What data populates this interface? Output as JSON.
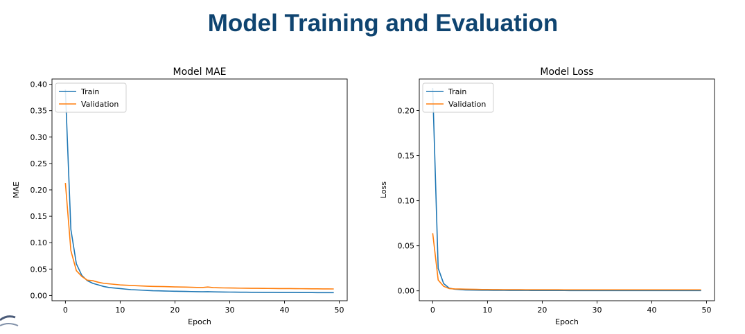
{
  "page": {
    "title": "Model Training and Evaluation"
  },
  "colors": {
    "title": "#0f4470",
    "train": "#1f77b4",
    "validation": "#ff7f0e"
  },
  "chart_data": [
    {
      "type": "line",
      "title": "Model MAE",
      "xlabel": "Epoch",
      "ylabel": "MAE",
      "xlim": [
        -2.45,
        51.45
      ],
      "ylim": [
        -0.01,
        0.41
      ],
      "xticks": [
        0,
        10,
        20,
        30,
        40,
        50
      ],
      "yticks": [
        0.0,
        0.05,
        0.1,
        0.15,
        0.2,
        0.25,
        0.3,
        0.35,
        0.4
      ],
      "ytick_labels": [
        "0.00",
        "0.05",
        "0.10",
        "0.15",
        "0.20",
        "0.25",
        "0.30",
        "0.35",
        "0.40"
      ],
      "legend_position": "top-left",
      "grid": false,
      "x": [
        0,
        1,
        2,
        3,
        4,
        5,
        6,
        7,
        8,
        9,
        10,
        11,
        12,
        13,
        14,
        15,
        16,
        17,
        18,
        19,
        20,
        21,
        22,
        23,
        24,
        25,
        26,
        27,
        28,
        29,
        30,
        31,
        32,
        33,
        34,
        35,
        36,
        37,
        38,
        39,
        40,
        41,
        42,
        43,
        44,
        45,
        46,
        47,
        48,
        49
      ],
      "series": [
        {
          "name": "Train",
          "color": "#1f77b4",
          "values": [
            0.39,
            0.125,
            0.06,
            0.038,
            0.028,
            0.023,
            0.02,
            0.017,
            0.015,
            0.014,
            0.013,
            0.012,
            0.011,
            0.0105,
            0.01,
            0.0095,
            0.009,
            0.0088,
            0.0085,
            0.0082,
            0.008,
            0.0078,
            0.0076,
            0.0074,
            0.0072,
            0.007,
            0.0072,
            0.0068,
            0.0066,
            0.0065,
            0.0064,
            0.0063,
            0.0062,
            0.0061,
            0.006,
            0.006,
            0.0059,
            0.0058,
            0.0058,
            0.0057,
            0.0057,
            0.0056,
            0.0056,
            0.0055,
            0.0055,
            0.0055,
            0.0054,
            0.0054,
            0.0054,
            0.0053
          ]
        },
        {
          "name": "Validation",
          "color": "#ff7f0e",
          "values": [
            0.213,
            0.085,
            0.047,
            0.036,
            0.029,
            0.028,
            0.025,
            0.023,
            0.022,
            0.021,
            0.02,
            0.0195,
            0.019,
            0.0185,
            0.018,
            0.0175,
            0.0172,
            0.017,
            0.0168,
            0.0165,
            0.0162,
            0.016,
            0.0158,
            0.0155,
            0.0152,
            0.015,
            0.016,
            0.0148,
            0.0145,
            0.0143,
            0.0142,
            0.014,
            0.0138,
            0.0137,
            0.0136,
            0.0135,
            0.0134,
            0.0133,
            0.0132,
            0.0131,
            0.013,
            0.013,
            0.0129,
            0.0128,
            0.0127,
            0.0126,
            0.0125,
            0.0124,
            0.0124,
            0.0123
          ]
        }
      ]
    },
    {
      "type": "line",
      "title": "Model Loss",
      "xlabel": "Epoch",
      "ylabel": "Loss",
      "xlim": [
        -2.45,
        51.45
      ],
      "ylim": [
        -0.011,
        0.235
      ],
      "xticks": [
        0,
        10,
        20,
        30,
        40,
        50
      ],
      "yticks": [
        0.0,
        0.05,
        0.1,
        0.15,
        0.2
      ],
      "ytick_labels": [
        "0.00",
        "0.05",
        "0.10",
        "0.15",
        "0.20"
      ],
      "legend_position": "top-left",
      "grid": false,
      "x": [
        0,
        1,
        2,
        3,
        4,
        5,
        6,
        7,
        8,
        9,
        10,
        11,
        12,
        13,
        14,
        15,
        16,
        17,
        18,
        19,
        20,
        21,
        22,
        23,
        24,
        25,
        26,
        27,
        28,
        29,
        30,
        31,
        32,
        33,
        34,
        35,
        36,
        37,
        38,
        39,
        40,
        41,
        42,
        43,
        44,
        45,
        46,
        47,
        48,
        49
      ],
      "series": [
        {
          "name": "Train",
          "color": "#1f77b4",
          "values": [
            0.225,
            0.025,
            0.008,
            0.003,
            0.0018,
            0.0013,
            0.001,
            0.0009,
            0.0008,
            0.0007,
            0.0007,
            0.0006,
            0.0006,
            0.0006,
            0.0005,
            0.0005,
            0.0005,
            0.0005,
            0.0004,
            0.0004,
            0.0004,
            0.0004,
            0.0004,
            0.0004,
            0.0004,
            0.0003,
            0.0003,
            0.0003,
            0.0003,
            0.0003,
            0.0003,
            0.0003,
            0.0003,
            0.0003,
            0.0003,
            0.0003,
            0.0003,
            0.0003,
            0.0003,
            0.0003,
            0.0003,
            0.0003,
            0.0003,
            0.0003,
            0.0003,
            0.0003,
            0.0003,
            0.0003,
            0.0003,
            0.0003
          ]
        },
        {
          "name": "Validation",
          "color": "#ff7f0e",
          "values": [
            0.064,
            0.012,
            0.005,
            0.0025,
            0.0021,
            0.002,
            0.0018,
            0.0017,
            0.0016,
            0.0015,
            0.0015,
            0.0014,
            0.0014,
            0.0013,
            0.0013,
            0.0013,
            0.0013,
            0.0012,
            0.0012,
            0.0012,
            0.0012,
            0.0012,
            0.0012,
            0.0012,
            0.0011,
            0.0011,
            0.0011,
            0.0011,
            0.0011,
            0.0011,
            0.0011,
            0.0011,
            0.0011,
            0.0011,
            0.0011,
            0.0011,
            0.0011,
            0.0011,
            0.0011,
            0.0011,
            0.0011,
            0.0011,
            0.0011,
            0.0011,
            0.0011,
            0.0011,
            0.0011,
            0.0011,
            0.0011,
            0.0011
          ]
        }
      ]
    }
  ]
}
